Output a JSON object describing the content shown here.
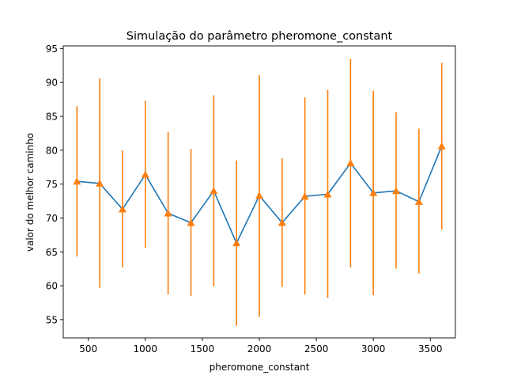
{
  "chart_data": {
    "type": "line",
    "title": "Simulação do parâmetro pheromone_constant",
    "xlabel": "pheromone_constant",
    "ylabel": "valor do melhor caminho",
    "xlim": [
      280,
      3720
    ],
    "ylim": [
      52.3,
      95.4
    ],
    "xticks": [
      500,
      1000,
      1500,
      2000,
      2500,
      3000,
      3500
    ],
    "yticks": [
      55,
      60,
      65,
      70,
      75,
      80,
      85,
      90,
      95
    ],
    "grid": false,
    "series": [
      {
        "x": [
          400,
          600,
          800,
          1000,
          1200,
          1400,
          1600,
          1800,
          2000,
          2200,
          2400,
          2600,
          2800,
          3000,
          3200,
          3400,
          3600
        ],
        "values": [
          75.4,
          75.1,
          71.3,
          76.4,
          70.7,
          69.3,
          74.0,
          66.3,
          73.3,
          69.3,
          73.2,
          73.5,
          78.1,
          73.7,
          74.0,
          72.4,
          80.6
        ],
        "err_low": [
          64.3,
          59.7,
          62.7,
          65.6,
          58.7,
          58.5,
          59.9,
          54.1,
          55.4,
          59.8,
          58.7,
          58.2,
          62.7,
          58.6,
          62.5,
          61.8,
          68.3
        ],
        "err_high": [
          86.5,
          90.6,
          80.0,
          87.3,
          82.7,
          80.2,
          88.1,
          78.5,
          91.1,
          78.8,
          87.8,
          88.9,
          93.5,
          88.8,
          85.6,
          83.2,
          92.9
        ]
      }
    ],
    "colors": {
      "line": "#1f77b4",
      "errorbar": "#ff7f0e",
      "marker": "#ff7f0e"
    }
  }
}
